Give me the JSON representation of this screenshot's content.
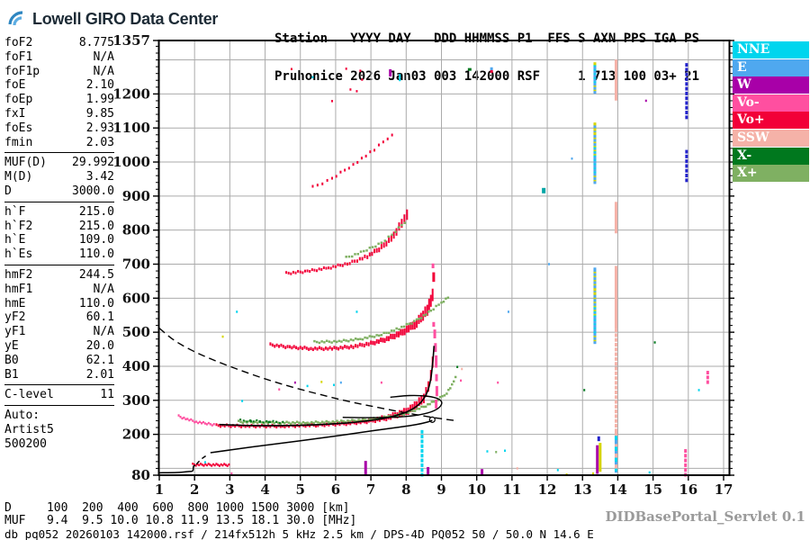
{
  "logo": {
    "text": "Lowell GIRO Data Center"
  },
  "header": {
    "line1": "Station   YYYY DAY   DDD HHMMSS P1  FFS S AXN PPS IGA PS",
    "line2": "Pruhonice 2026 Jan03 003 142000 RSF     1 713 100 03+ 21"
  },
  "params_sections": [
    {
      "rows": [
        [
          "foF2",
          "8.775"
        ],
        [
          "foF1",
          "N/A"
        ],
        [
          "foF1p",
          "N/A"
        ],
        [
          "foE",
          "2.10"
        ],
        [
          "foEp",
          "1.99"
        ],
        [
          "fxI",
          "9.85"
        ],
        [
          "foEs",
          "2.93"
        ],
        [
          "fmin",
          "2.03"
        ]
      ]
    },
    {
      "rows": [
        [
          "MUF(D)",
          "29.992"
        ],
        [
          "M(D)",
          "3.42"
        ],
        [
          "D",
          "3000.0"
        ]
      ]
    },
    {
      "rows": [
        [
          "h`F",
          "215.0"
        ],
        [
          "h`F2",
          "215.0"
        ],
        [
          "h`E",
          "109.0"
        ],
        [
          "h`Es",
          "110.0"
        ]
      ]
    },
    {
      "rows": [
        [
          "hmF2",
          "244.5"
        ],
        [
          "hmF1",
          "N/A"
        ],
        [
          "hmE",
          "110.0"
        ],
        [
          "yF2",
          "60.1"
        ],
        [
          "yF1",
          "N/A"
        ],
        [
          "yE",
          "20.0"
        ],
        [
          "B0",
          "62.1"
        ],
        [
          "B1",
          "2.01"
        ]
      ]
    },
    {
      "rows": [
        [
          "C-level",
          "11"
        ]
      ]
    },
    {
      "plain": [
        "Auto:",
        "Artist5",
        "500200"
      ]
    }
  ],
  "footer": {
    "d_row": "D     100  200  400  600  800 1000 1500 3000 [km]",
    "muf_row": "MUF   9.4  9.5 10.0 10.8 11.9 13.5 18.1 30.0 [MHz]",
    "status": "db pq052 20260103 142000.rsf / 214fx512h 5 kHz 2.5 km / DPS-4D PQ052 50 / 50.0 N 14.6 E",
    "servlet": "DIDBasePortal_Servlet 0.1"
  },
  "chart_data": {
    "type": "scatter",
    "xlabel": "frequency [MHz]",
    "ylabel": "virtual height [km]",
    "x_axis": {
      "range": [
        1,
        17.15
      ],
      "ticks": [
        1,
        2,
        3,
        4,
        5,
        6,
        7,
        8,
        9,
        10,
        11,
        12,
        13,
        14,
        15,
        16,
        17
      ]
    },
    "y_axis": {
      "range": [
        80,
        1357
      ],
      "major_ticks": [
        80,
        200,
        300,
        400,
        500,
        600,
        700,
        800,
        900,
        1000,
        1100,
        1200,
        1357
      ],
      "minor_step": 20
    },
    "grid": {
      "color": "#ababab",
      "x_step": 1,
      "y_step": 100
    },
    "palette": {
      "nne": "#00d5ee",
      "e": "#4fa8ef",
      "w": "#a800a8",
      "vo-": "#ff4fa0",
      "vo+": "#f20038",
      "ssw": "#f5b2a8",
      "x-": "#00781e",
      "x+": "#7fb062",
      "navy": "#2222cc",
      "yellow": "#d6d600",
      "teal": "#00a5a5",
      "black": "#000000"
    },
    "legend": [
      {
        "label": "NNE",
        "color": "nne"
      },
      {
        "label": "E",
        "color": "e"
      },
      {
        "label": "W",
        "color": "w"
      },
      {
        "label": "Vo-",
        "color": "vo-"
      },
      {
        "label": "Vo+",
        "color": "vo+"
      },
      {
        "label": "SSW",
        "color": "ssw"
      },
      {
        "label": "X-",
        "color": "x-"
      },
      {
        "label": "X+",
        "color": "x+"
      }
    ],
    "traces": [
      {
        "name": "Es-trace",
        "color": "vo+",
        "step": 0.045,
        "w": 2,
        "h": 2.5,
        "pts": [
          [
            1.95,
            111
          ],
          [
            3.02,
            110
          ]
        ]
      },
      {
        "name": "F-lead",
        "color": "vo-",
        "step": 0.05,
        "w": 2,
        "h": 2.5,
        "pts": [
          [
            1.55,
            253
          ],
          [
            1.8,
            244
          ],
          [
            2.05,
            237
          ],
          [
            2.35,
            231
          ],
          [
            2.6,
            228
          ]
        ]
      },
      {
        "name": "F1hop-O",
        "color": "vo+",
        "step": 0.06,
        "w": 2,
        "h": 3,
        "grow": 1,
        "pts": [
          [
            2.62,
            226
          ],
          [
            3.5,
            224
          ],
          [
            4.5,
            224
          ],
          [
            5.5,
            227
          ],
          [
            6.3,
            232
          ],
          [
            7.0,
            240
          ],
          [
            7.5,
            250
          ],
          [
            8.0,
            267
          ],
          [
            8.3,
            286
          ],
          [
            8.5,
            308
          ],
          [
            8.63,
            338
          ],
          [
            8.7,
            372
          ],
          [
            8.75,
            412
          ],
          [
            8.78,
            448
          ]
        ]
      },
      {
        "name": "F1hop-X",
        "color": "x+",
        "step": 0.06,
        "w": 2.5,
        "h": 2.5,
        "pts": [
          [
            3.25,
            237
          ],
          [
            4.2,
            234
          ],
          [
            5.2,
            234
          ],
          [
            6.1,
            237
          ],
          [
            6.9,
            243
          ],
          [
            7.5,
            251
          ],
          [
            8.0,
            262
          ],
          [
            8.5,
            281
          ],
          [
            8.9,
            302
          ],
          [
            9.15,
            322
          ],
          [
            9.3,
            344
          ],
          [
            9.4,
            367
          ],
          [
            9.45,
            396
          ]
        ]
      },
      {
        "name": "F1hop-X2",
        "color": "x-",
        "step": 0.09,
        "w": 2,
        "h": 2,
        "pts": [
          [
            3.3,
            241
          ],
          [
            4.6,
            235
          ]
        ]
      },
      {
        "name": "F2hop-O",
        "color": "vo+",
        "step": 0.06,
        "w": 2,
        "h": 3.5,
        "grow": 1,
        "pts": [
          [
            4.15,
            463
          ],
          [
            4.7,
            456
          ],
          [
            5.3,
            452
          ],
          [
            5.9,
            452
          ],
          [
            6.5,
            458
          ],
          [
            7.0,
            467
          ],
          [
            7.45,
            480
          ],
          [
            7.9,
            500
          ],
          [
            8.3,
            527
          ],
          [
            8.6,
            567
          ],
          [
            8.75,
            607
          ],
          [
            8.82,
            645
          ]
        ]
      },
      {
        "name": "F2hop-X",
        "color": "x+",
        "step": 0.07,
        "w": 2.5,
        "h": 2.5,
        "pts": [
          [
            5.4,
            471
          ],
          [
            6.1,
            473
          ],
          [
            6.7,
            480
          ],
          [
            7.3,
            493
          ],
          [
            7.8,
            511
          ],
          [
            8.3,
            535
          ],
          [
            8.7,
            562
          ],
          [
            9.0,
            587
          ],
          [
            9.25,
            608
          ]
        ]
      },
      {
        "name": "F3hop-O",
        "color": "vo+",
        "step": 0.07,
        "w": 2,
        "h": 3,
        "grow": 1,
        "pts": [
          [
            4.6,
            673
          ],
          [
            5.2,
            679
          ],
          [
            5.8,
            689
          ],
          [
            6.4,
            703
          ],
          [
            6.9,
            723
          ],
          [
            7.3,
            749
          ],
          [
            7.65,
            784
          ],
          [
            7.95,
            832
          ],
          [
            8.1,
            864
          ]
        ]
      },
      {
        "name": "F3hop-X",
        "color": "x+",
        "step": 0.09,
        "w": 2.5,
        "h": 2.5,
        "pts": [
          [
            6.3,
            719
          ],
          [
            6.8,
            737
          ],
          [
            7.3,
            763
          ],
          [
            7.7,
            796
          ],
          [
            8.05,
            833
          ]
        ]
      },
      {
        "name": "F4hop-O",
        "color": "vo+",
        "step": 0.13,
        "w": 2,
        "h": 3,
        "pts": [
          [
            5.35,
            926
          ],
          [
            5.9,
            951
          ],
          [
            6.5,
            993
          ],
          [
            7.1,
            1036
          ],
          [
            7.6,
            1082
          ],
          [
            7.78,
            1108
          ]
        ]
      }
    ],
    "bars": [
      [
        8.85,
        276,
        302,
        "vo-"
      ],
      [
        8.87,
        312,
        342,
        "vo-"
      ],
      [
        8.86,
        356,
        377,
        "vo-"
      ],
      [
        8.85,
        396,
        432,
        "vo-"
      ],
      [
        8.83,
        442,
        468,
        "vo-"
      ],
      [
        8.81,
        482,
        508,
        "vo-"
      ],
      [
        8.78,
        516,
        530,
        "vo-"
      ],
      [
        8.78,
        648,
        676,
        "vo+"
      ],
      [
        8.76,
        688,
        702,
        "vo-"
      ],
      [
        6.85,
        80,
        122,
        "w"
      ],
      [
        8.62,
        80,
        104,
        "w"
      ],
      [
        10.15,
        80,
        98,
        "w"
      ],
      [
        13.42,
        84,
        168,
        "w"
      ],
      [
        13.5,
        90,
        175,
        "yellow"
      ],
      [
        13.46,
        180,
        194,
        "navy"
      ]
    ],
    "columns": [
      {
        "f": 13.35,
        "colors": [
          "e",
          "yellow",
          "e",
          "nne",
          "e",
          "e",
          "yellow"
        ],
        "segs": [
          [
            470,
            688
          ],
          [
            940,
            1112
          ],
          [
            1205,
            1292
          ]
        ]
      },
      {
        "f": 13.95,
        "colors": [
          "ssw"
        ],
        "segs": [
          [
            515,
            692
          ],
          [
            795,
            882
          ],
          [
            1185,
            1300
          ]
        ]
      },
      {
        "f": 13.95,
        "colors": [
          "e",
          "nne",
          "ssw"
        ],
        "segs": [
          [
            92,
            205
          ]
        ]
      },
      {
        "f": 13.95,
        "colors": [
          "ssw"
        ],
        "dash": 1,
        "segs": [
          [
            210,
            510
          ]
        ]
      },
      {
        "f": 15.95,
        "colors": [
          "navy"
        ],
        "dash": 1,
        "segs": [
          [
            945,
            1042
          ],
          [
            1130,
            1292
          ]
        ]
      },
      {
        "f": 15.92,
        "colors": [
          "vo-"
        ],
        "dash": 1,
        "segs": [
          [
            80,
            162
          ]
        ]
      },
      {
        "f": 8.45,
        "colors": [
          "nne"
        ],
        "dash": 1,
        "segs": [
          [
            80,
            218
          ]
        ]
      },
      {
        "f": 16.55,
        "colors": [
          "vo-"
        ],
        "dash": 1,
        "segs": [
          [
            352,
            388
          ]
        ]
      }
    ],
    "scatter": [
      [
        2.8,
        487,
        "yellow"
      ],
      [
        3.35,
        298,
        "nne"
      ],
      [
        3.2,
        560,
        "nne"
      ],
      [
        4.4,
        332,
        "vo-"
      ],
      [
        4.85,
        352,
        "w"
      ],
      [
        5.2,
        342,
        "nne"
      ],
      [
        5.6,
        354,
        "yellow"
      ],
      [
        5.95,
        345,
        "nne"
      ],
      [
        6.15,
        352,
        "e"
      ],
      [
        6.6,
        560,
        "nne"
      ],
      [
        7.3,
        352,
        "vo-"
      ],
      [
        4.75,
        1273,
        "vo+"
      ],
      [
        5.35,
        1249,
        "nne"
      ],
      [
        6.3,
        1274,
        "vo+"
      ],
      [
        6.7,
        1268,
        "vo+"
      ],
      [
        6.75,
        1242,
        "vo+"
      ],
      [
        6.6,
        1208,
        "vo+"
      ],
      [
        6.42,
        1213,
        "vo+"
      ],
      [
        5.9,
        1179,
        "vo+"
      ],
      [
        7.55,
        1262,
        "w",
        3,
        8
      ],
      [
        7.82,
        1248,
        "nne",
        2,
        8
      ],
      [
        9.8,
        1272,
        "x-",
        4,
        3
      ],
      [
        10.42,
        1273,
        "e",
        3,
        4
      ],
      [
        10.42,
        1266,
        "vo+",
        3,
        3
      ],
      [
        11.9,
        916,
        "teal",
        4,
        6
      ],
      [
        12.7,
        1010,
        "e"
      ],
      [
        12.05,
        700,
        "e"
      ],
      [
        10.9,
        560,
        "e"
      ],
      [
        9.45,
        398,
        "x-"
      ],
      [
        9.58,
        392,
        "ssw"
      ],
      [
        9.55,
        358,
        "vo-"
      ],
      [
        10.6,
        352,
        "vo-"
      ],
      [
        14.8,
        1180,
        "w"
      ],
      [
        16.3,
        330,
        "nne"
      ],
      [
        15.05,
        470,
        "x-"
      ],
      [
        13.05,
        330,
        "x-"
      ],
      [
        10.3,
        150,
        "nne"
      ],
      [
        10.55,
        148,
        "x+"
      ],
      [
        10.8,
        152,
        "nne"
      ],
      [
        12.3,
        95,
        "nne"
      ],
      [
        11.15,
        100,
        "ssw"
      ],
      [
        14.9,
        88,
        "nne"
      ],
      [
        2.3,
        118,
        "nne"
      ],
      [
        3.05,
        85,
        "vo-"
      ],
      [
        13.3,
        85,
        "yellow"
      ],
      [
        12.55,
        82,
        "yellow"
      ],
      [
        3.6,
        239,
        "x-"
      ],
      [
        3.85,
        237,
        "x-"
      ],
      [
        4.1,
        236,
        "x-"
      ]
    ],
    "curves": {
      "transmission_dashed": [
        [
          1.0,
          512
        ],
        [
          1.4,
          478
        ],
        [
          1.9,
          448
        ],
        [
          2.5,
          420
        ],
        [
          3.2,
          392
        ],
        [
          4.0,
          363
        ],
        [
          4.8,
          338
        ],
        [
          5.6,
          316
        ],
        [
          6.4,
          296
        ],
        [
          7.2,
          279
        ],
        [
          8.0,
          263
        ],
        [
          8.8,
          249
        ],
        [
          9.35,
          241
        ]
      ],
      "profile_e": [
        [
          1.0,
          87
        ],
        [
          1.5,
          88
        ],
        [
          1.85,
          91
        ],
        [
          1.95,
          93
        ],
        [
          1.97,
          106
        ],
        [
          2.02,
          109
        ]
      ],
      "valley_dashed": [
        [
          2.05,
          112
        ],
        [
          2.2,
          128
        ],
        [
          2.4,
          142
        ]
      ],
      "profile_f": [
        [
          2.45,
          146
        ],
        [
          3.0,
          154
        ],
        [
          4.0,
          168
        ],
        [
          5.0,
          181
        ],
        [
          6.0,
          195
        ],
        [
          7.0,
          210
        ],
        [
          7.8,
          221
        ],
        [
          8.3,
          229
        ],
        [
          8.6,
          236
        ],
        [
          8.74,
          241
        ]
      ],
      "hook": [
        [
          6.2,
          250
        ],
        [
          7.0,
          249
        ],
        [
          7.8,
          251
        ],
        [
          8.4,
          258
        ],
        [
          8.8,
          270
        ],
        [
          9.0,
          288
        ],
        [
          8.93,
          303
        ],
        [
          8.6,
          312
        ],
        [
          8.1,
          314
        ],
        [
          7.55,
          309
        ]
      ],
      "fitted_trace": [
        [
          2.7,
          229
        ],
        [
          3.6,
          226
        ],
        [
          4.6,
          226
        ],
        [
          5.6,
          229
        ],
        [
          6.5,
          235
        ],
        [
          7.2,
          244
        ],
        [
          7.7,
          255
        ],
        [
          8.1,
          270
        ],
        [
          8.4,
          292
        ],
        [
          8.6,
          325
        ],
        [
          8.7,
          365
        ],
        [
          8.76,
          420
        ],
        [
          8.79,
          460
        ]
      ],
      "peak_marker": [
        8.74,
        243
      ]
    }
  }
}
